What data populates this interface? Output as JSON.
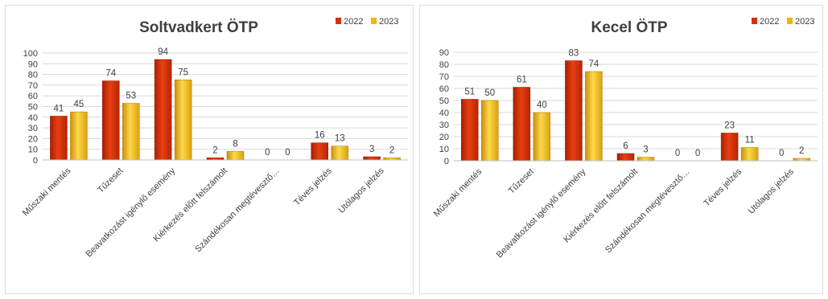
{
  "chart_data": [
    {
      "type": "bar",
      "title": "Soltvadkert  ÖTP",
      "categories": [
        "Műszaki mentés",
        "Tűzeset",
        "Beavatkozást igénylő esemény",
        "Kiérkezés előtt felszámolt",
        "Szándékosan megtévesztő…",
        "Téves jelzés",
        "Utólagos jelzés"
      ],
      "series": [
        {
          "name": "2022",
          "values": [
            41,
            74,
            94,
            2,
            0,
            16,
            3
          ]
        },
        {
          "name": "2023",
          "values": [
            45,
            53,
            75,
            8,
            0,
            13,
            2
          ]
        }
      ],
      "ylim": [
        0,
        100
      ],
      "yticks": [
        0,
        10,
        20,
        30,
        40,
        50,
        60,
        70,
        80,
        90,
        100
      ],
      "grid": true,
      "legend": "top-right",
      "colors": [
        "#d8300a",
        "#f1b60e"
      ]
    },
    {
      "type": "bar",
      "title": "Kecel ÖTP",
      "categories": [
        "Műszaki mentés",
        "Tűzeset",
        "Beavatkozást igénylő esemény",
        "Kiérkezés előtt felszámolt",
        "Szándékosan megtévesztő…",
        "Téves jelzés",
        "Utólagos jelzés"
      ],
      "series": [
        {
          "name": "2022",
          "values": [
            51,
            61,
            83,
            6,
            0,
            23,
            0
          ]
        },
        {
          "name": "2023",
          "values": [
            50,
            40,
            74,
            3,
            0,
            11,
            2
          ]
        }
      ],
      "ylim": [
        0,
        90
      ],
      "yticks": [
        0,
        10,
        20,
        30,
        40,
        50,
        60,
        70,
        80,
        90
      ],
      "grid": true,
      "legend": "top-right",
      "colors": [
        "#d8300a",
        "#f1b60e"
      ]
    }
  ]
}
